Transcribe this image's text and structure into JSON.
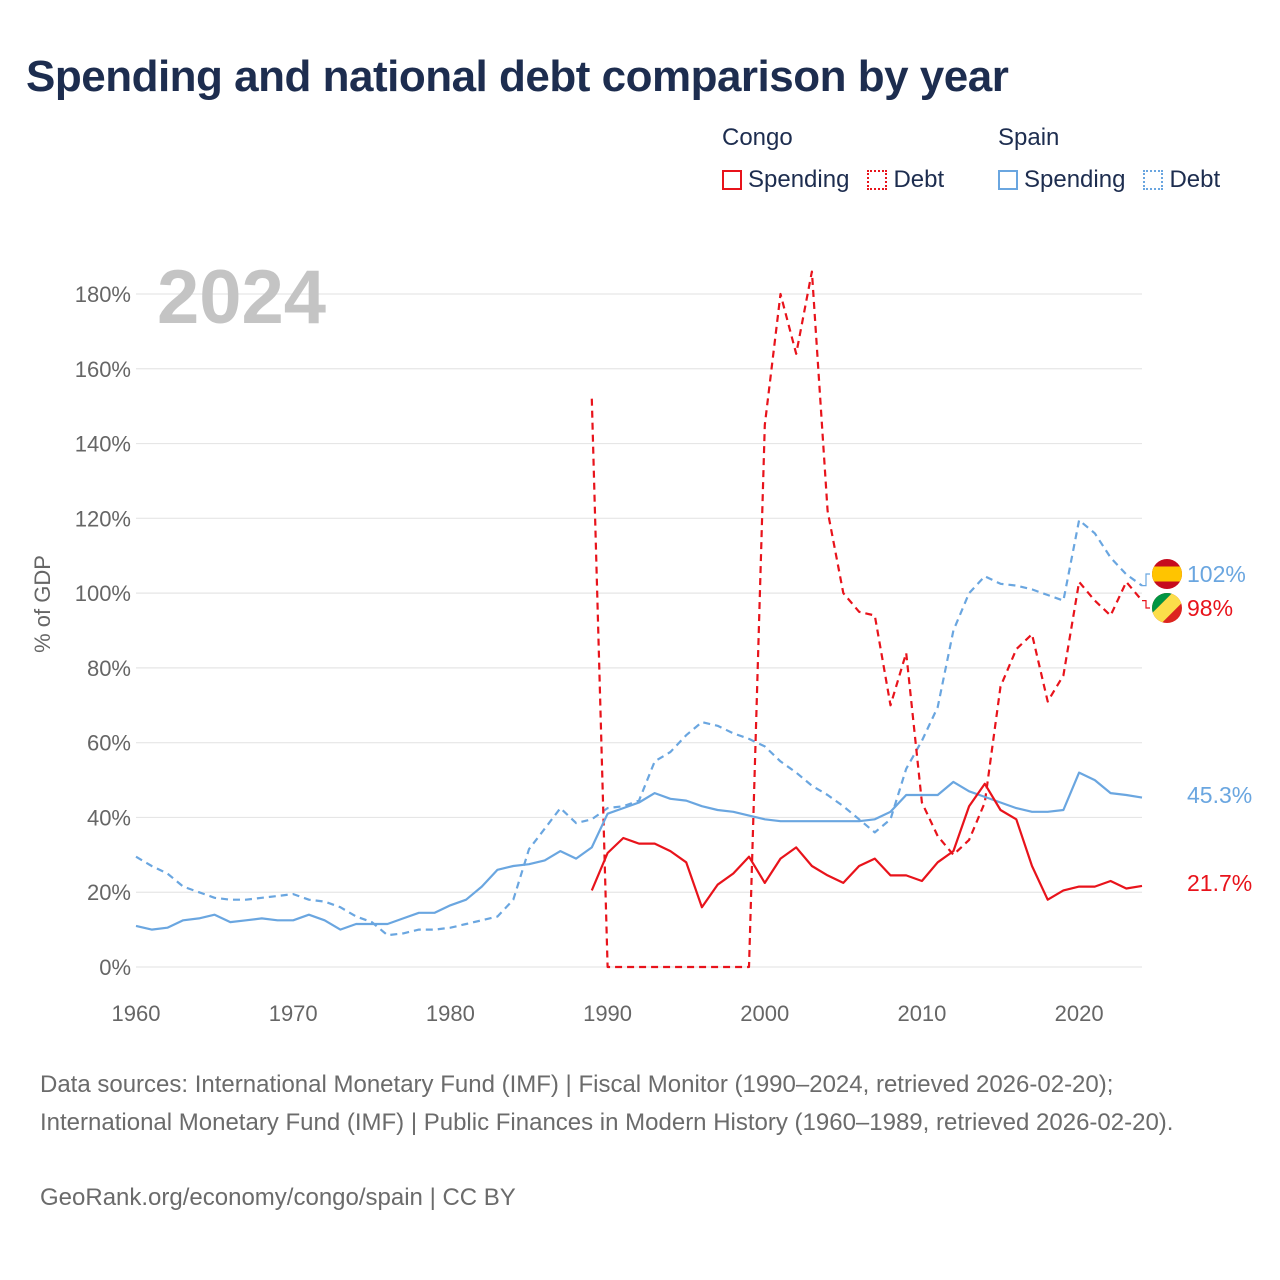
{
  "title": "Spending and national debt comparison by year",
  "colors": {
    "congo": "#e8131b",
    "spain": "#6aa6e0",
    "grid": "#e6e6e6",
    "text": "#666666",
    "year_watermark": "#c4c4c4"
  },
  "legend": {
    "congo": {
      "label": "Congo",
      "spending": "Spending",
      "debt": "Debt"
    },
    "spain": {
      "label": "Spain",
      "spending": "Spending",
      "debt": "Debt"
    }
  },
  "chart_data": {
    "type": "line",
    "current_year": "2024",
    "ylabel": "% of GDP",
    "xlim": [
      1960,
      2024
    ],
    "ylim": [
      0,
      185
    ],
    "yticks": [
      0,
      20,
      40,
      60,
      80,
      100,
      120,
      140,
      160,
      180
    ],
    "ytick_labels": [
      "0%",
      "20%",
      "40%",
      "60%",
      "80%",
      "100%",
      "120%",
      "140%",
      "160%",
      "180%"
    ],
    "xticks": [
      1960,
      1970,
      1980,
      1990,
      2000,
      2010,
      2020
    ],
    "xtick_labels": [
      "1960",
      "1970",
      "1980",
      "1990",
      "2000",
      "2010",
      "2020"
    ],
    "series": [
      {
        "key": "spain_debt",
        "name": "Spain Debt",
        "country": "spain",
        "style": "dashed",
        "x": [
          1960,
          1961,
          1962,
          1963,
          1964,
          1965,
          1966,
          1967,
          1968,
          1969,
          1970,
          1971,
          1972,
          1973,
          1974,
          1975,
          1976,
          1977,
          1978,
          1979,
          1980,
          1981,
          1982,
          1983,
          1984,
          1985,
          1986,
          1987,
          1988,
          1989,
          1990,
          1991,
          1992,
          1993,
          1994,
          1995,
          1996,
          1997,
          1998,
          1999,
          2000,
          2001,
          2002,
          2003,
          2004,
          2005,
          2006,
          2007,
          2008,
          2009,
          2010,
          2011,
          2012,
          2013,
          2014,
          2015,
          2016,
          2017,
          2018,
          2019,
          2020,
          2021,
          2022,
          2023,
          2024
        ],
        "y": [
          29.5,
          27,
          25,
          21.5,
          20,
          18.5,
          18,
          18,
          18.5,
          19,
          19.5,
          18,
          17.5,
          16,
          13.5,
          12,
          8.5,
          9,
          10,
          10,
          10.5,
          11.5,
          12.5,
          13.5,
          18,
          31.5,
          37,
          42.5,
          38.5,
          39.5,
          42.5,
          43,
          44.5,
          55,
          57.5,
          62,
          65.5,
          64.5,
          62.5,
          61,
          59,
          55,
          52,
          48.5,
          46,
          43,
          39.5,
          36,
          39.5,
          53,
          60.5,
          69.5,
          90,
          100,
          104.5,
          102.5,
          102,
          101,
          99.5,
          98,
          119.5,
          116,
          109.5,
          105,
          102
        ],
        "end_label": "102%"
      },
      {
        "key": "congo_debt",
        "name": "Congo Debt",
        "country": "congo",
        "style": "dashed",
        "x": [
          1989,
          1990,
          1991,
          1992,
          1993,
          1994,
          1995,
          1996,
          1997,
          1998,
          1999,
          2000,
          2001,
          2002,
          2003,
          2004,
          2005,
          2006,
          2007,
          2008,
          2009,
          2010,
          2011,
          2012,
          2013,
          2014,
          2015,
          2016,
          2017,
          2018,
          2019,
          2020,
          2021,
          2022,
          2023,
          2024
        ],
        "y": [
          152,
          0,
          0,
          0,
          0,
          0,
          0,
          0,
          0,
          0,
          0,
          145,
          180,
          164,
          186,
          122,
          100,
          95,
          94,
          70,
          84,
          44,
          35,
          30,
          34,
          44,
          75,
          85,
          89,
          71,
          78,
          103,
          98,
          94,
          103,
          98
        ],
        "end_label": "98%"
      },
      {
        "key": "spain_spending",
        "name": "Spain Spending",
        "country": "spain",
        "style": "solid",
        "x": [
          1960,
          1961,
          1962,
          1963,
          1964,
          1965,
          1966,
          1967,
          1968,
          1969,
          1970,
          1971,
          1972,
          1973,
          1974,
          1975,
          1976,
          1977,
          1978,
          1979,
          1980,
          1981,
          1982,
          1983,
          1984,
          1985,
          1986,
          1987,
          1988,
          1989,
          1990,
          1991,
          1992,
          1993,
          1994,
          1995,
          1996,
          1997,
          1998,
          1999,
          2000,
          2001,
          2002,
          2003,
          2004,
          2005,
          2006,
          2007,
          2008,
          2009,
          2010,
          2011,
          2012,
          2013,
          2014,
          2015,
          2016,
          2017,
          2018,
          2019,
          2020,
          2021,
          2022,
          2023,
          2024
        ],
        "y": [
          11,
          10,
          10.5,
          12.5,
          13,
          14,
          12,
          12.5,
          13,
          12.5,
          12.5,
          14,
          12.5,
          10,
          11.5,
          11.5,
          11.5,
          13,
          14.5,
          14.5,
          16.5,
          18,
          21.5,
          26,
          27,
          27.5,
          28.5,
          31,
          29,
          32,
          41,
          42.5,
          44,
          46.5,
          45,
          44.5,
          43,
          42,
          41.5,
          40.5,
          39.5,
          39,
          39,
          39,
          39,
          39,
          39,
          39.5,
          41.5,
          46,
          46,
          46,
          49.5,
          47,
          45.5,
          44,
          42.5,
          41.5,
          41.5,
          42,
          52,
          50,
          46.5,
          46,
          45.3
        ],
        "end_label": "45.3%"
      },
      {
        "key": "congo_spending",
        "name": "Congo Spending",
        "country": "congo",
        "style": "solid",
        "x": [
          1989,
          1990,
          1991,
          1992,
          1993,
          1994,
          1995,
          1996,
          1997,
          1998,
          1999,
          2000,
          2001,
          2002,
          2003,
          2004,
          2005,
          2006,
          2007,
          2008,
          2009,
          2010,
          2011,
          2012,
          2013,
          2014,
          2015,
          2016,
          2017,
          2018,
          2019,
          2020,
          2021,
          2022,
          2023,
          2024
        ],
        "y": [
          20.5,
          30.5,
          34.5,
          33,
          33,
          31,
          28,
          16,
          22,
          25,
          29.5,
          22.5,
          29,
          32,
          27,
          24.5,
          22.5,
          27,
          29,
          24.5,
          24.5,
          23,
          28,
          31,
          43,
          49,
          42,
          39.5,
          27,
          18,
          20.5,
          21.5,
          21.5,
          23,
          21,
          21.7
        ],
        "end_label": "21.7%"
      }
    ]
  },
  "sources": "Data sources: International Monetary Fund (IMF) | Fiscal Monitor (1990–2024, retrieved 2026-02-20); International Monetary Fund (IMF) | Public Finances in Modern History (1960–1989, retrieved 2026-02-20).",
  "footer": "GeoRank.org/economy/congo/spain | CC BY"
}
